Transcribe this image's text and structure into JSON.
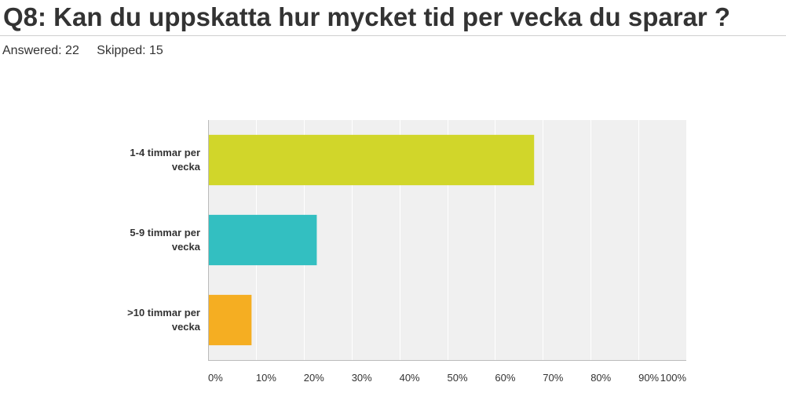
{
  "question": {
    "title": "Q8: Kan du uppskatta hur mycket tid per vecka du sparar ?",
    "answered_label": "Answered: 22",
    "skipped_label": "Skipped: 15"
  },
  "colors": {
    "plot_background": "#f0f0f0",
    "grid": "#ffffff",
    "axis": "#bbbbbb"
  },
  "chart_data": {
    "type": "bar",
    "orientation": "horizontal",
    "categories": [
      [
        "1-4 timmar per",
        "vecka"
      ],
      [
        "5-9 timmar per",
        "vecka"
      ],
      [
        ">10 timmar per",
        "vecka"
      ]
    ],
    "values": [
      68.18,
      22.73,
      9.09
    ],
    "bar_colors": [
      "#d1d62a",
      "#33bfc1",
      "#f5ae22"
    ],
    "x_ticks": [
      "0%",
      "10%",
      "20%",
      "30%",
      "40%",
      "50%",
      "60%",
      "70%",
      "80%",
      "90%",
      "100%"
    ],
    "xlim": [
      0,
      100
    ],
    "grid": true,
    "legend": "none",
    "title": "",
    "xlabel": "",
    "ylabel": ""
  }
}
